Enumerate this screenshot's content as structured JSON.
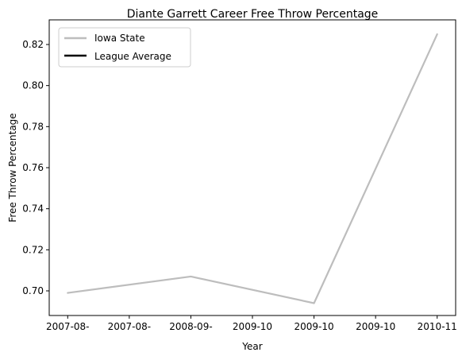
{
  "chart_data": {
    "type": "line",
    "title": "Diante Garrett Career Free Throw Percentage",
    "xlabel": "Year",
    "ylabel": "Free Throw Percentage",
    "x_ticks": [
      "2007-08-",
      "2007-08-",
      "2008-09-",
      "2009-10",
      "2009-10",
      "2009-10",
      "2010-11"
    ],
    "x_points": [
      0,
      2,
      4,
      6
    ],
    "ylim": [
      0.688,
      0.832
    ],
    "y_ticks": [
      0.7,
      0.72,
      0.74,
      0.76,
      0.78,
      0.8,
      0.82
    ],
    "grid": false,
    "legend_position": "upper-left",
    "series": [
      {
        "name": "Iowa State",
        "color": "#bdbdbd",
        "values": [
          0.699,
          0.707,
          0.694,
          0.825
        ]
      },
      {
        "name": "League Average",
        "color": "#000000",
        "values": []
      }
    ]
  }
}
